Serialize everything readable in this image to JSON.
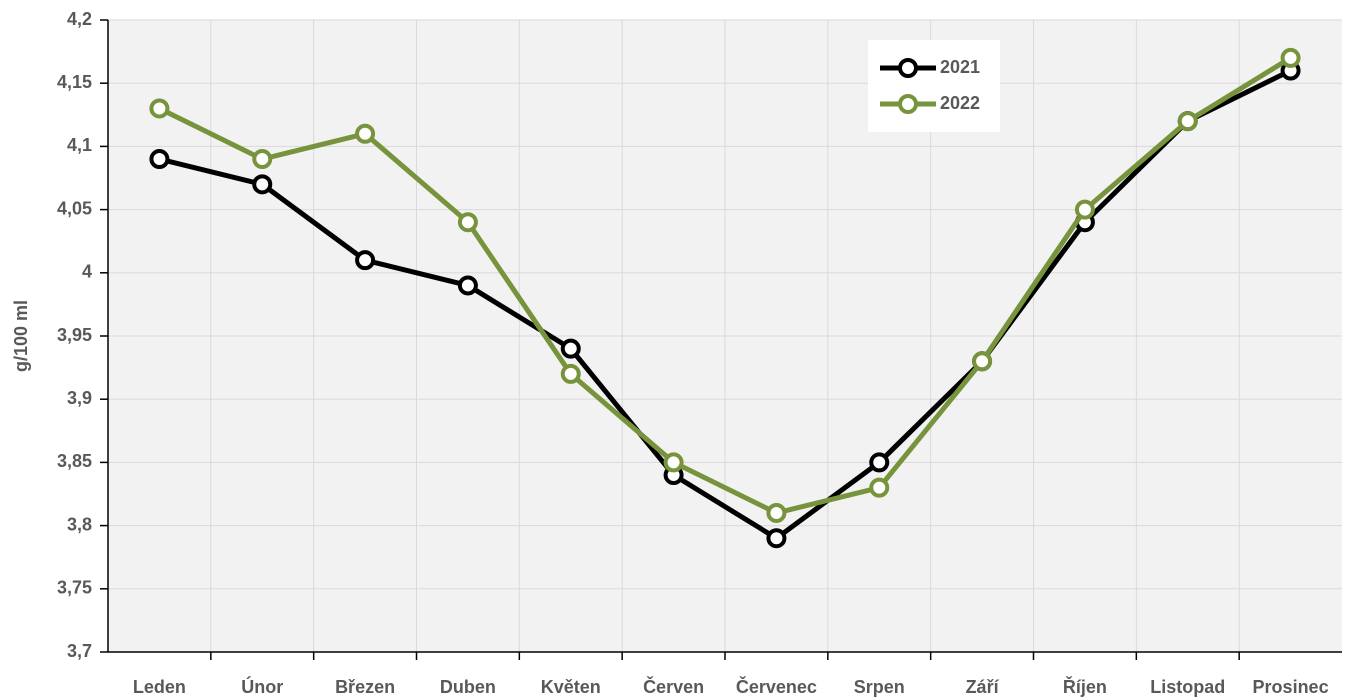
{
  "chart_data": {
    "type": "line",
    "y_label": "g/100 ml",
    "categories": [
      "Leden",
      "Únor",
      "Březen",
      "Duben",
      "Květen",
      "Červen",
      "Červenec",
      "Srpen",
      "Září",
      "Říjen",
      "Listopad",
      "Prosinec"
    ],
    "series": [
      {
        "name": "2021",
        "color": "#000000",
        "values": [
          4.09,
          4.07,
          4.01,
          3.99,
          3.94,
          3.84,
          3.79,
          3.85,
          3.93,
          4.04,
          4.12,
          4.16
        ]
      },
      {
        "name": "2022",
        "color": "#77933c",
        "values": [
          4.13,
          4.09,
          4.11,
          4.04,
          3.92,
          3.85,
          3.81,
          3.83,
          3.93,
          4.05,
          4.12,
          4.17
        ]
      }
    ],
    "ylim": [
      3.7,
      4.2
    ],
    "yticks": [
      {
        "value": 3.7,
        "label": "3,7"
      },
      {
        "value": 3.75,
        "label": "3,75"
      },
      {
        "value": 3.8,
        "label": "3,8"
      },
      {
        "value": 3.85,
        "label": "3,85"
      },
      {
        "value": 3.9,
        "label": "3,9"
      },
      {
        "value": 3.95,
        "label": "3,95"
      },
      4,
      {
        "value": 4.05,
        "label": "4,05"
      },
      {
        "value": 4.1,
        "label": "4,1"
      },
      {
        "value": 4.15,
        "label": "4,15"
      },
      {
        "value": 4.2,
        "label": "4,2"
      }
    ],
    "grid": true,
    "legend": "upper right"
  }
}
